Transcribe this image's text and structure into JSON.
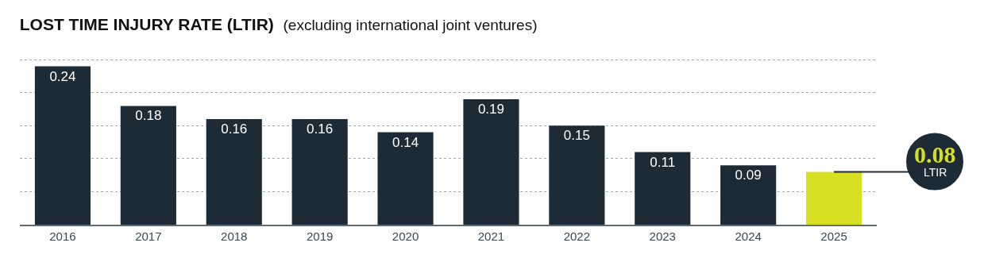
{
  "chart_data": {
    "type": "bar",
    "title": "LOST TIME INJURY RATE (LTIR)",
    "subtitle": "(excluding international joint ventures)",
    "categories": [
      "2016",
      "2017",
      "2018",
      "2019",
      "2020",
      "2021",
      "2022",
      "2023",
      "2024",
      "2025"
    ],
    "values": [
      0.24,
      0.18,
      0.16,
      0.16,
      0.14,
      0.19,
      0.15,
      0.11,
      0.09,
      0.08
    ],
    "colors": [
      "#1c2b36",
      "#1c2b36",
      "#1c2b36",
      "#1c2b36",
      "#1c2b36",
      "#1c2b36",
      "#1c2b36",
      "#1c2b36",
      "#1c2b36",
      "#d7df23"
    ],
    "data_labels": true,
    "annotations": [
      {
        "text": "LTIR",
        "x": "2025",
        "y": 0.08
      }
    ],
    "grid": "y",
    "tick_labels": "x"
  }
}
